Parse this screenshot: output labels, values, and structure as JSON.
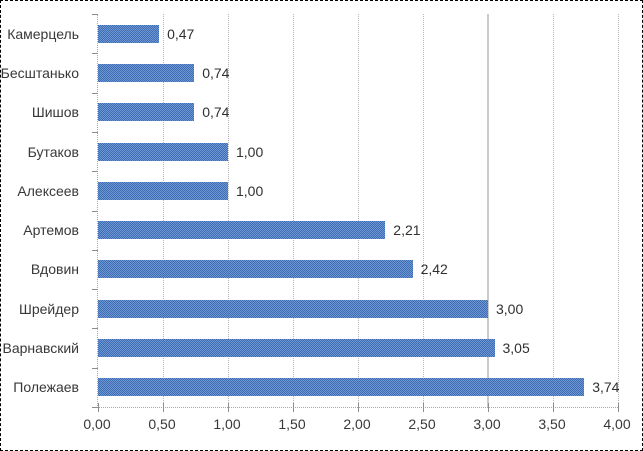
{
  "chart_data": {
    "type": "bar",
    "orientation": "horizontal",
    "title": "",
    "xlabel": "",
    "ylabel": "",
    "categories": [
      "Камерцель",
      "Бесштанько",
      "Шишов",
      "Бутаков",
      "Алексеев",
      "Артемов",
      "Вдовин",
      "Шрейдер",
      "Варнавский",
      "Полежаев"
    ],
    "values": [
      0.47,
      0.74,
      0.74,
      1.0,
      1.0,
      2.21,
      2.42,
      3.0,
      3.05,
      3.74
    ],
    "value_labels": [
      "0,47",
      "0,74",
      "0,74",
      "1,00",
      "1,00",
      "2,21",
      "2,42",
      "3,00",
      "3,05",
      "3,74"
    ],
    "xlim": [
      0,
      4
    ],
    "x_tick_values": [
      0,
      0.5,
      1,
      1.5,
      2,
      2.5,
      3,
      3.5,
      4
    ],
    "x_tick_labels": [
      "0,00",
      "0,50",
      "1,00",
      "1,50",
      "2,00",
      "2,50",
      "3,00",
      "3,50",
      "4,00"
    ],
    "grid": "vertical-dotted",
    "legend": "none",
    "reference_line": {
      "value": 3.0,
      "style": "solid"
    },
    "colors": {
      "bar_dither_light": "#6f97d3",
      "bar_dither_dark": "#3d6cb3",
      "bar_average": "#5581c3",
      "gridline": "#b4b4b4",
      "axis_line": "#a8a8a8",
      "tick": "#8f8f8f",
      "text": "#383838",
      "reference_line": "#cbcbcb",
      "outer_border": "#000000",
      "background": "#ffffff"
    }
  }
}
